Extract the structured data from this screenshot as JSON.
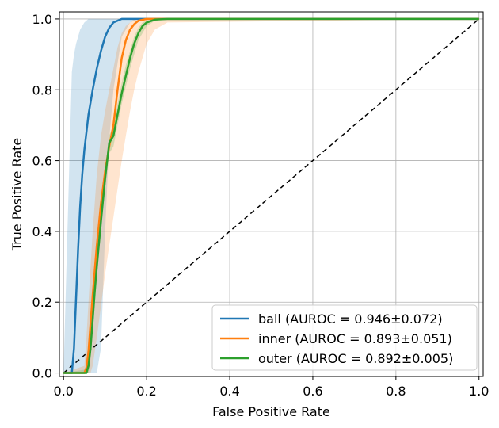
{
  "chart_data": {
    "type": "line",
    "xlabel": "False Positive Rate",
    "ylabel": "True Positive Rate",
    "xlim": [
      -0.01,
      1.01
    ],
    "ylim": [
      -0.01,
      1.02
    ],
    "xticks": [
      "0.0",
      "0.2",
      "0.4",
      "0.6",
      "0.8",
      "1.0"
    ],
    "yticks": [
      "0.0",
      "0.2",
      "0.4",
      "0.6",
      "0.8",
      "1.0"
    ],
    "grid": true,
    "legend_position": "lower-right",
    "series": [
      {
        "name": "ball (AUROC = 0.946±0.072)",
        "color": "#1f77b4",
        "band_color": "#1f77b4",
        "x": [
          0,
          0.02,
          0.025,
          0.03,
          0.035,
          0.04,
          0.045,
          0.05,
          0.06,
          0.07,
          0.08,
          0.09,
          0.1,
          0.11,
          0.12,
          0.14,
          0.16,
          0.18,
          0.2,
          1.0
        ],
        "y": [
          0,
          0,
          0.07,
          0.21,
          0.35,
          0.47,
          0.56,
          0.63,
          0.73,
          0.8,
          0.86,
          0.91,
          0.95,
          0.975,
          0.99,
          1.0,
          1.0,
          1.0,
          1.0,
          1.0
        ],
        "upper": [
          0,
          0.85,
          0.9,
          0.93,
          0.95,
          0.97,
          0.98,
          0.99,
          1.0,
          1.0,
          1.0,
          1.0,
          1.0,
          1.0,
          1.0,
          1.0,
          1.0,
          1.0,
          1.0,
          1.0
        ],
        "lower": [
          0,
          0,
          0,
          0,
          0,
          0,
          0,
          0,
          0,
          0,
          0,
          0.07,
          0.4,
          0.66,
          0.8,
          0.95,
          0.99,
          1.0,
          1.0,
          1.0
        ]
      },
      {
        "name": "inner (AUROC = 0.893±0.051)",
        "color": "#ff7f0e",
        "band_color": "#ff7f0e",
        "x": [
          0,
          0.05,
          0.055,
          0.06,
          0.065,
          0.07,
          0.075,
          0.08,
          0.09,
          0.1,
          0.11,
          0.12,
          0.13,
          0.14,
          0.15,
          0.16,
          0.17,
          0.18,
          0.2,
          0.22,
          0.25,
          1.0
        ],
        "y": [
          0,
          0,
          0.015,
          0.06,
          0.14,
          0.22,
          0.29,
          0.36,
          0.48,
          0.57,
          0.64,
          0.7,
          0.8,
          0.89,
          0.94,
          0.97,
          0.985,
          0.995,
          1.0,
          1.0,
          1.0,
          1.0
        ],
        "upper": [
          0,
          0.02,
          0.1,
          0.2,
          0.3,
          0.4,
          0.48,
          0.56,
          0.67,
          0.74,
          0.8,
          0.86,
          0.92,
          0.96,
          0.98,
          0.99,
          1.0,
          1.0,
          1.0,
          1.0,
          1.0,
          1.0
        ],
        "lower": [
          0,
          0,
          0,
          0,
          0,
          0.02,
          0.06,
          0.1,
          0.19,
          0.28,
          0.36,
          0.44,
          0.52,
          0.6,
          0.67,
          0.74,
          0.8,
          0.85,
          0.93,
          0.97,
          0.99,
          1.0
        ]
      },
      {
        "name": "outer (AUROC = 0.892±0.005)",
        "color": "#2ca02c",
        "band_color": "#2ca02c",
        "x": [
          0,
          0.055,
          0.06,
          0.065,
          0.07,
          0.075,
          0.08,
          0.09,
          0.1,
          0.105,
          0.11,
          0.12,
          0.13,
          0.14,
          0.15,
          0.16,
          0.17,
          0.18,
          0.19,
          0.2,
          0.22,
          0.25,
          1.0
        ],
        "y": [
          0,
          0,
          0.02,
          0.07,
          0.15,
          0.23,
          0.3,
          0.43,
          0.55,
          0.6,
          0.65,
          0.67,
          0.73,
          0.79,
          0.84,
          0.89,
          0.93,
          0.96,
          0.98,
          0.99,
          0.998,
          1.0,
          1.0
        ],
        "upper": [
          0,
          0.01,
          0.04,
          0.1,
          0.18,
          0.26,
          0.33,
          0.46,
          0.57,
          0.62,
          0.67,
          0.7,
          0.76,
          0.82,
          0.87,
          0.91,
          0.95,
          0.975,
          0.99,
          0.995,
          1.0,
          1.0,
          1.0
        ],
        "lower": [
          0,
          0,
          0,
          0.04,
          0.12,
          0.2,
          0.27,
          0.4,
          0.52,
          0.57,
          0.62,
          0.64,
          0.7,
          0.76,
          0.81,
          0.86,
          0.9,
          0.94,
          0.96,
          0.98,
          0.995,
          1.0,
          1.0
        ]
      }
    ],
    "reference_line": {
      "x": [
        0,
        1
      ],
      "y": [
        0,
        1
      ],
      "style": "dashed",
      "color": "#000000"
    }
  }
}
